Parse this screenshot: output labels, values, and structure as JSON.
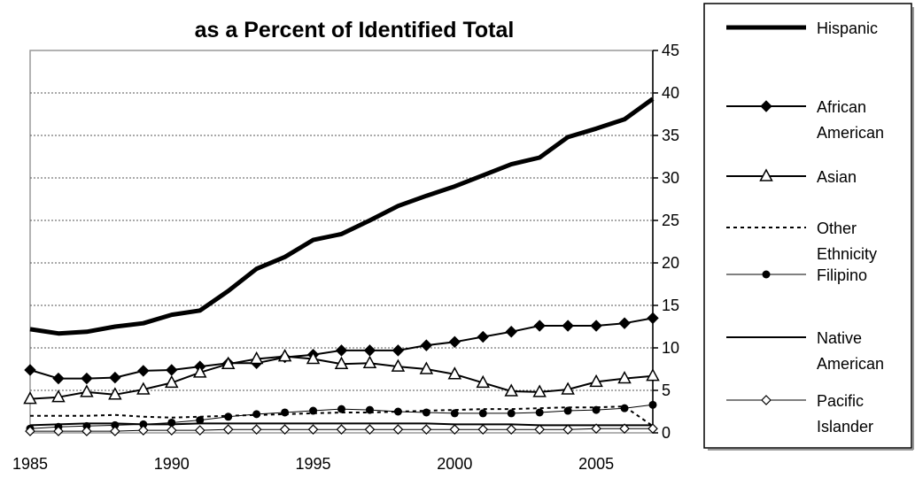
{
  "chart_data": {
    "type": "line",
    "title_line2": "as a Percent of Identified Total",
    "x": [
      1985,
      1986,
      1987,
      1988,
      1989,
      1990,
      1991,
      1992,
      1993,
      1994,
      1995,
      1996,
      1997,
      1998,
      1999,
      2000,
      2001,
      2002,
      2003,
      2004,
      2005,
      2006,
      2007
    ],
    "xlim": [
      1985,
      2007
    ],
    "ylim": [
      0,
      45
    ],
    "x_ticks": [
      "1985",
      "1990",
      "1995",
      "2000",
      "2005"
    ],
    "x_tick_values": [
      1985,
      1990,
      1995,
      2000,
      2005
    ],
    "y_ticks": [
      "0",
      "5",
      "10",
      "15",
      "20",
      "25",
      "30",
      "35",
      "40",
      "45"
    ],
    "y_tick_values": [
      0,
      5,
      10,
      15,
      20,
      25,
      30,
      35,
      40,
      45
    ],
    "grid": "horizontal dotted",
    "y_axis_side": "right",
    "legend_position": "right",
    "series": [
      {
        "name": "Hispanic",
        "label_lines": [
          "Hispanic"
        ],
        "marker": "none",
        "dash": "solid",
        "width": 5,
        "values": [
          12.2,
          11.7,
          11.9,
          12.5,
          12.9,
          13.9,
          14.4,
          16.7,
          19.3,
          20.7,
          22.7,
          23.4,
          25.0,
          26.7,
          27.9,
          29.0,
          30.3,
          31.6,
          32.4,
          34.8,
          35.8,
          36.9,
          39.3
        ]
      },
      {
        "name": "African American",
        "label_lines": [
          "African",
          "American"
        ],
        "marker": "diamond-filled",
        "dash": "solid",
        "width": 2,
        "values": [
          7.4,
          6.4,
          6.4,
          6.5,
          7.3,
          7.4,
          7.8,
          8.2,
          8.2,
          8.9,
          9.2,
          9.7,
          9.7,
          9.7,
          10.3,
          10.7,
          11.3,
          11.9,
          12.6,
          12.6,
          12.6,
          12.9,
          13.5
        ]
      },
      {
        "name": "Asian",
        "label_lines": [
          "Asian"
        ],
        "marker": "triangle-open",
        "dash": "solid",
        "width": 2,
        "values": [
          4.0,
          4.2,
          4.8,
          4.5,
          5.1,
          5.9,
          7.1,
          8.1,
          8.7,
          9.0,
          8.7,
          8.1,
          8.2,
          7.8,
          7.5,
          6.9,
          5.9,
          4.9,
          4.8,
          5.1,
          6.0,
          6.4,
          6.7
        ]
      },
      {
        "name": "Other Ethnicity",
        "label_lines": [
          "Other",
          "Ethnicity"
        ],
        "marker": "none",
        "dash": "dotted",
        "width": 2,
        "values": [
          2.0,
          2.0,
          2.0,
          2.1,
          1.9,
          1.8,
          1.9,
          2.0,
          2.1,
          2.2,
          2.3,
          2.4,
          2.4,
          2.5,
          2.6,
          2.7,
          2.8,
          2.8,
          2.9,
          3.0,
          3.0,
          3.1,
          0.8
        ]
      },
      {
        "name": "Filipino",
        "label_lines": [
          "Filipino"
        ],
        "marker": "circle-filled",
        "dash": "solid",
        "width": 1,
        "values": [
          0.5,
          0.7,
          0.8,
          0.9,
          1.0,
          1.2,
          1.5,
          1.9,
          2.2,
          2.4,
          2.6,
          2.8,
          2.7,
          2.5,
          2.4,
          2.3,
          2.3,
          2.3,
          2.4,
          2.6,
          2.7,
          2.9,
          3.3
        ]
      },
      {
        "name": "Native American",
        "label_lines": [
          "Native",
          "American"
        ],
        "marker": "none",
        "dash": "solid",
        "width": 2,
        "values": [
          0.9,
          1.0,
          1.1,
          1.1,
          1.0,
          1.0,
          1.1,
          1.1,
          1.1,
          1.1,
          1.1,
          1.1,
          1.1,
          1.1,
          1.1,
          1.0,
          1.0,
          1.0,
          0.9,
          0.9,
          0.9,
          0.9,
          0.9
        ]
      },
      {
        "name": "Pacific Islander",
        "label_lines": [
          "Pacific",
          "Islander"
        ],
        "marker": "diamond-open",
        "dash": "solid",
        "width": 1,
        "values": [
          0.2,
          0.2,
          0.2,
          0.2,
          0.3,
          0.3,
          0.3,
          0.4,
          0.4,
          0.4,
          0.4,
          0.4,
          0.4,
          0.4,
          0.4,
          0.4,
          0.4,
          0.4,
          0.4,
          0.4,
          0.5,
          0.5,
          0.5
        ]
      }
    ]
  }
}
